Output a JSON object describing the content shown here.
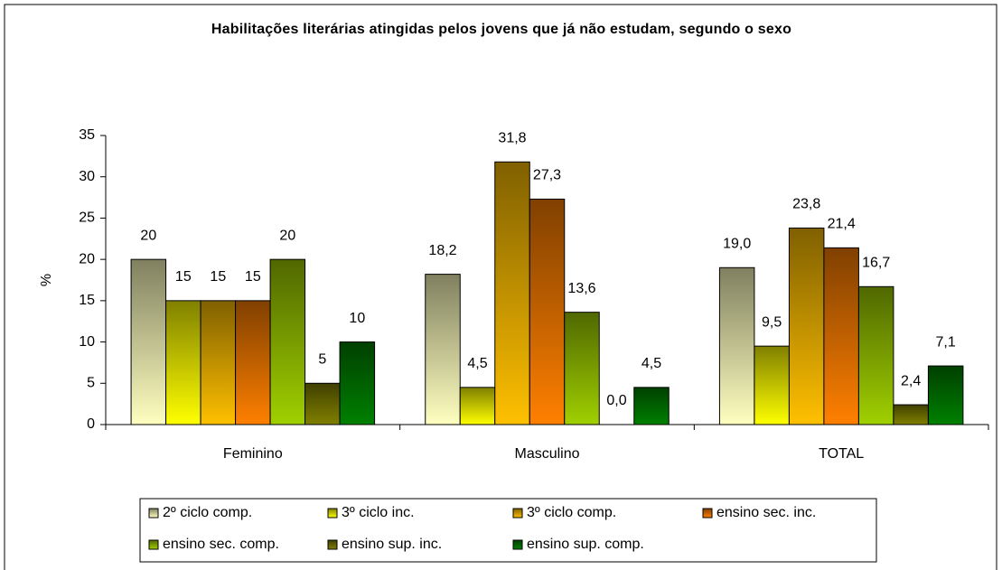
{
  "chart_data": {
    "type": "bar",
    "title": "Habilitações literárias atingidas pelos jovens que já não estudam, segundo o sexo",
    "y_label": "%",
    "categories": [
      "Feminino",
      "Masculino",
      "TOTAL"
    ],
    "series": [
      {
        "name": "2º ciclo comp.",
        "color": "#ffffc0",
        "values": [
          20,
          18.2,
          19.0
        ],
        "value_labels": [
          "20",
          "18,2",
          "19,0"
        ]
      },
      {
        "name": "3º ciclo inc.",
        "color": "#ffff00",
        "values": [
          15,
          4.5,
          9.5
        ],
        "value_labels": [
          "15",
          "4,5",
          "9,5"
        ]
      },
      {
        "name": "3º ciclo comp.",
        "color": "#ffc000",
        "values": [
          15,
          31.8,
          23.8
        ],
        "value_labels": [
          "15",
          "31,8",
          "23,8"
        ]
      },
      {
        "name": "ensino sec. inc.",
        "color": "#ff8000",
        "values": [
          15,
          27.3,
          21.4
        ],
        "value_labels": [
          "15",
          "27,3",
          "21,4"
        ]
      },
      {
        "name": "ensino sec. comp.",
        "color": "#a0d000",
        "values": [
          20,
          13.6,
          16.7
        ],
        "value_labels": [
          "20",
          "13,6",
          "16,7"
        ]
      },
      {
        "name": "ensino sup. inc.",
        "color": "#808000",
        "values": [
          5,
          0.0,
          2.4
        ],
        "value_labels": [
          "5",
          "0,0",
          "2,4"
        ]
      },
      {
        "name": "ensino sup. comp.",
        "color": "#008000",
        "values": [
          10,
          4.5,
          7.1
        ],
        "value_labels": [
          "10",
          "4,5",
          "7,1"
        ]
      }
    ],
    "ylim": [
      0,
      35
    ],
    "yticks": [
      0,
      5,
      10,
      15,
      20,
      25,
      30,
      35
    ],
    "grid": false,
    "legend": "bottom"
  }
}
